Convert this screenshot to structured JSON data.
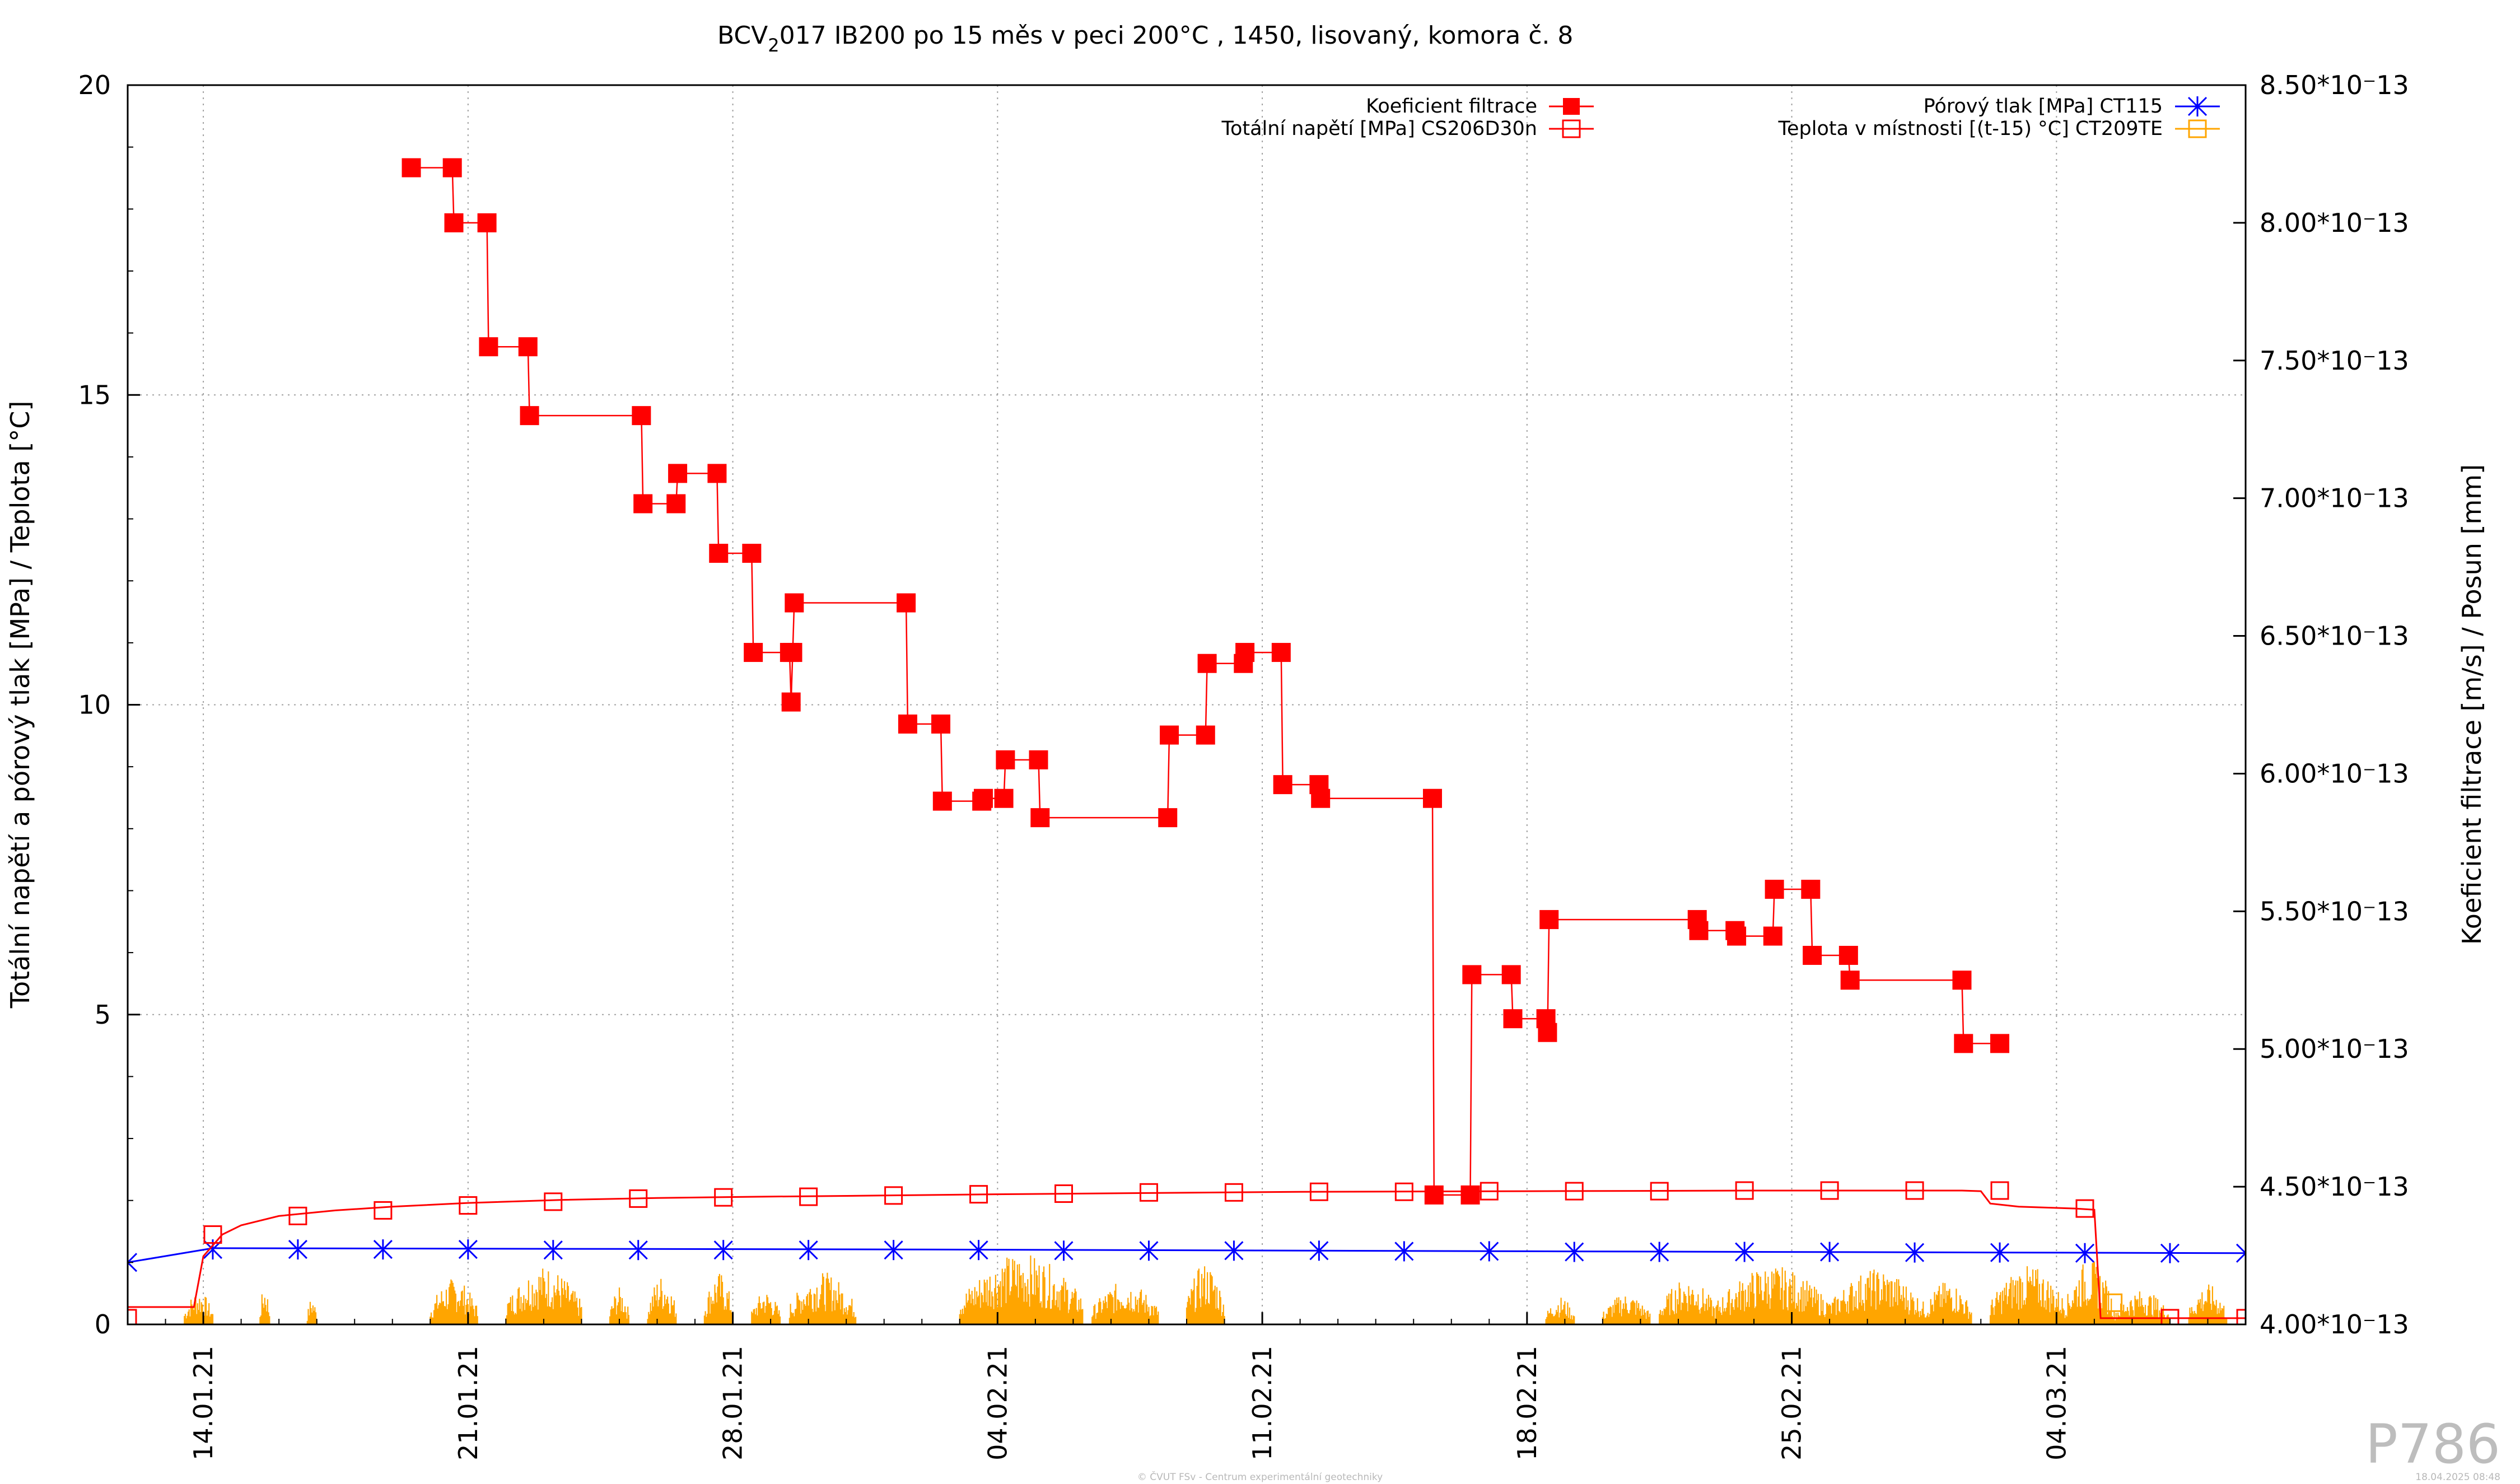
{
  "chart_data": {
    "type": "line",
    "title_main": "BCV",
    "title_sub": "2",
    "title_rest": "017 IB200 po 15 měs v peci 200°C , 1450, lisovaný, komora č. 8",
    "ylabel_left": "Totální napětí a pórový tlak [MPa] / Teplota [°C]",
    "ylabel_right": "Koeficient filtrace [m/s] / Posun [mm]",
    "xlim": [
      "2021-01-12",
      "2021-03-09"
    ],
    "ylim_left": [
      0,
      20
    ],
    "ylim_right": [
      4e-13,
      8.5e-13
    ],
    "left_ticks": [
      "0",
      "5",
      "10",
      "15",
      "20"
    ],
    "right_ticks": [
      "4.00*10⁻13",
      "4.50*10⁻13",
      "5.00*10⁻13",
      "5.50*10⁻13",
      "6.00*10⁻13",
      "6.50*10⁻13",
      "7.00*10⁻13",
      "7.50*10⁻13",
      "8.00*10⁻13",
      "8.50*10⁻13"
    ],
    "x_ticks": [
      "14.01.21",
      "21.01.21",
      "28.01.21",
      "04.02.21",
      "11.02.21",
      "18.02.21",
      "25.02.21",
      "04.03.21"
    ],
    "legend_left": [
      {
        "name": "Koeficient filtrace",
        "color": "#ff0000",
        "marker": "filled-square"
      },
      {
        "name": "Totální napětí [MPa] CS206D30n",
        "color": "#ff0000",
        "marker": "open-square"
      }
    ],
    "legend_right": [
      {
        "name": "Pórový tlak [MPa] CT115",
        "color": "#0000ff",
        "marker": "star"
      },
      {
        "name": "Teplota v místnosti [(t-15) °C] CT209TE",
        "color": "#ffa500",
        "marker": "open-square"
      }
    ],
    "series": [
      {
        "name": "Koeficient filtrace",
        "axis": "right",
        "color": "#ff0000",
        "step": true,
        "points": [
          [
            "2021-01-19 12:00",
            8.2e-13
          ],
          [
            "2021-01-20 14:00",
            8.2e-13
          ],
          [
            "2021-01-20 15:00",
            8e-13
          ],
          [
            "2021-01-21 12:00",
            8e-13
          ],
          [
            "2021-01-21 13:00",
            7.55e-13
          ],
          [
            "2021-01-22 14:00",
            7.55e-13
          ],
          [
            "2021-01-22 15:00",
            7.3e-13
          ],
          [
            "2021-01-25 14:00",
            7.3e-13
          ],
          [
            "2021-01-25 15:00",
            6.98e-13
          ],
          [
            "2021-01-26 12:00",
            6.98e-13
          ],
          [
            "2021-01-26 13:00",
            7.09e-13
          ],
          [
            "2021-01-27 14:00",
            7.09e-13
          ],
          [
            "2021-01-27 15:00",
            6.8e-13
          ],
          [
            "2021-01-28 12:00",
            6.8e-13
          ],
          [
            "2021-01-28 13:00",
            6.44e-13
          ],
          [
            "2021-01-29 12:00",
            6.44e-13
          ],
          [
            "2021-01-29 13:00",
            6.26e-13
          ],
          [
            "2021-01-29 14:00",
            6.44e-13
          ],
          [
            "2021-01-29 15:00",
            6.62e-13
          ],
          [
            "2021-02-01 14:00",
            6.62e-13
          ],
          [
            "2021-02-01 15:00",
            6.18e-13
          ],
          [
            "2021-02-02 12:00",
            6.18e-13
          ],
          [
            "2021-02-02 13:00",
            5.9e-13
          ],
          [
            "2021-02-03 14:00",
            5.9e-13
          ],
          [
            "2021-02-03 15:00",
            5.91e-13
          ],
          [
            "2021-02-04 04:00",
            5.91e-13
          ],
          [
            "2021-02-04 05:00",
            6.05e-13
          ],
          [
            "2021-02-05 02:00",
            6.05e-13
          ],
          [
            "2021-02-05 03:00",
            5.84e-13
          ],
          [
            "2021-02-08 12:00",
            5.84e-13
          ],
          [
            "2021-02-08 13:00",
            6.14e-13
          ],
          [
            "2021-02-09 12:00",
            6.14e-13
          ],
          [
            "2021-02-09 13:00",
            6.4e-13
          ],
          [
            "2021-02-10 12:00",
            6.4e-13
          ],
          [
            "2021-02-10 13:00",
            6.44e-13
          ],
          [
            "2021-02-11 12:00",
            6.44e-13
          ],
          [
            "2021-02-11 13:00",
            5.96e-13
          ],
          [
            "2021-02-12 12:00",
            5.96e-13
          ],
          [
            "2021-02-12 13:00",
            5.91e-13
          ],
          [
            "2021-02-15 12:00",
            5.91e-13
          ],
          [
            "2021-02-15 13:00",
            4.47e-13
          ],
          [
            "2021-02-16 12:00",
            4.47e-13
          ],
          [
            "2021-02-16 13:00",
            5.27e-13
          ],
          [
            "2021-02-17 14:00",
            5.27e-13
          ],
          [
            "2021-02-17 15:00",
            5.11e-13
          ],
          [
            "2021-02-18 12:00",
            5.11e-13
          ],
          [
            "2021-02-18 13:00",
            5.06e-13
          ],
          [
            "2021-02-18 14:00",
            5.47e-13
          ],
          [
            "2021-02-22 12:00",
            5.47e-13
          ],
          [
            "2021-02-22 13:00",
            5.43e-13
          ],
          [
            "2021-02-23 12:00",
            5.43e-13
          ],
          [
            "2021-02-23 13:00",
            5.41e-13
          ],
          [
            "2021-02-24 12:00",
            5.41e-13
          ],
          [
            "2021-02-24 13:00",
            5.58e-13
          ],
          [
            "2021-02-25 12:00",
            5.58e-13
          ],
          [
            "2021-02-25 13:00",
            5.34e-13
          ],
          [
            "2021-02-26 12:00",
            5.34e-13
          ],
          [
            "2021-02-26 13:00",
            5.25e-13
          ],
          [
            "2021-03-01 12:00",
            5.25e-13
          ],
          [
            "2021-03-01 13:00",
            5.02e-13
          ],
          [
            "2021-03-02 12:00",
            5.02e-13
          ]
        ]
      },
      {
        "name": "Totální napětí [MPa] CS206D30n",
        "axis": "left",
        "color": "#ff0000",
        "points": [
          [
            "2021-01-12 00:00",
            0.28
          ],
          [
            "2021-01-13 18:00",
            0.28
          ],
          [
            "2021-01-14 00:00",
            1.1
          ],
          [
            "2021-01-14 12:00",
            1.45
          ],
          [
            "2021-01-15 00:00",
            1.6
          ],
          [
            "2021-01-16 00:00",
            1.75
          ],
          [
            "2021-01-17 12:00",
            1.84
          ],
          [
            "2021-01-19 00:00",
            1.9
          ],
          [
            "2021-01-21 00:00",
            1.96
          ],
          [
            "2021-01-23 12:00",
            2.01
          ],
          [
            "2021-01-26 00:00",
            2.04
          ],
          [
            "2021-01-28 12:00",
            2.06
          ],
          [
            "2021-02-01 00:00",
            2.08
          ],
          [
            "2021-02-04 00:00",
            2.1
          ],
          [
            "2021-02-08 00:00",
            2.12
          ],
          [
            "2021-02-12 00:00",
            2.14
          ],
          [
            "2021-02-18 00:00",
            2.15
          ],
          [
            "2021-02-24 00:00",
            2.16
          ],
          [
            "2021-03-01 12:00",
            2.16
          ],
          [
            "2021-03-02 00:00",
            2.15
          ],
          [
            "2021-03-02 06:00",
            1.95
          ],
          [
            "2021-03-03 00:00",
            1.9
          ],
          [
            "2021-03-04 12:00",
            1.87
          ],
          [
            "2021-03-05 00:00",
            1.85
          ],
          [
            "2021-03-05 04:00",
            0.1
          ],
          [
            "2021-03-09 00:00",
            0.1
          ]
        ],
        "marker_points": [
          [
            "2021-01-12 00:00",
            0.1
          ],
          [
            "2021-01-14 06:00",
            1.45
          ],
          [
            "2021-01-16 12:00",
            1.75
          ],
          [
            "2021-01-18 18:00",
            1.84
          ],
          [
            "2021-01-21 00:00",
            1.92
          ],
          [
            "2021-01-23 06:00",
            1.98
          ],
          [
            "2021-01-25 12:00",
            2.03
          ],
          [
            "2021-01-27 18:00",
            2.05
          ],
          [
            "2021-01-30 00:00",
            2.06
          ],
          [
            "2021-02-01 06:00",
            2.08
          ],
          [
            "2021-02-03 12:00",
            2.1
          ],
          [
            "2021-02-05 18:00",
            2.11
          ],
          [
            "2021-02-08 00:00",
            2.13
          ],
          [
            "2021-02-10 06:00",
            2.13
          ],
          [
            "2021-02-12 12:00",
            2.14
          ],
          [
            "2021-02-14 18:00",
            2.14
          ],
          [
            "2021-02-17 00:00",
            2.15
          ],
          [
            "2021-02-19 06:00",
            2.15
          ],
          [
            "2021-02-21 12:00",
            2.15
          ],
          [
            "2021-02-23 18:00",
            2.16
          ],
          [
            "2021-02-26 00:00",
            2.16
          ],
          [
            "2021-02-28 06:00",
            2.16
          ],
          [
            "2021-03-02 12:00",
            2.16
          ],
          [
            "2021-03-04 18:00",
            1.87
          ],
          [
            "2021-03-07 00:00",
            0.1
          ],
          [
            "2021-03-09 00:00",
            0.1
          ]
        ]
      },
      {
        "name": "Pórový tlak [MPa] CT115",
        "axis": "left",
        "color": "#0000ff",
        "points": [
          [
            "2021-01-12 00:00",
            1.0
          ],
          [
            "2021-01-14 06:00",
            1.23
          ],
          [
            "2021-02-01 00:00",
            1.21
          ],
          [
            "2021-02-18 00:00",
            1.18
          ],
          [
            "2021-03-09 00:00",
            1.15
          ]
        ],
        "marker_points": [
          [
            "2021-01-12 00:00",
            1.0
          ],
          [
            "2021-01-14 06:00",
            1.21
          ],
          [
            "2021-01-16 12:00",
            1.21
          ],
          [
            "2021-01-18 18:00",
            1.21
          ],
          [
            "2021-01-21 00:00",
            1.21
          ],
          [
            "2021-01-23 06:00",
            1.2
          ],
          [
            "2021-01-25 12:00",
            1.2
          ],
          [
            "2021-01-27 18:00",
            1.2
          ],
          [
            "2021-01-30 00:00",
            1.2
          ],
          [
            "2021-02-01 06:00",
            1.2
          ],
          [
            "2021-02-03 12:00",
            1.2
          ],
          [
            "2021-02-05 18:00",
            1.19
          ],
          [
            "2021-02-08 00:00",
            1.19
          ],
          [
            "2021-02-10 06:00",
            1.19
          ],
          [
            "2021-02-12 12:00",
            1.19
          ],
          [
            "2021-02-14 18:00",
            1.18
          ],
          [
            "2021-02-17 00:00",
            1.18
          ],
          [
            "2021-02-19 06:00",
            1.17
          ],
          [
            "2021-02-21 12:00",
            1.17
          ],
          [
            "2021-02-23 18:00",
            1.17
          ],
          [
            "2021-02-26 00:00",
            1.17
          ],
          [
            "2021-02-28 06:00",
            1.16
          ],
          [
            "2021-03-02 12:00",
            1.16
          ],
          [
            "2021-03-04 18:00",
            1.15
          ],
          [
            "2021-03-07 00:00",
            1.15
          ],
          [
            "2021-03-09 00:00",
            1.15
          ]
        ]
      },
      {
        "name": "Teplota v místnosti [(t-15) °C] CT209TE",
        "axis": "left",
        "color": "#ffa500",
        "bursts": [
          {
            "start": "2021-01-13 12:00",
            "end": "2021-01-14 06:00",
            "peak": 0.55
          },
          {
            "start": "2021-01-15 12:00",
            "end": "2021-01-15 18:00",
            "peak": 0.65
          },
          {
            "start": "2021-01-16 18:00",
            "end": "2021-01-17 00:00",
            "peak": 0.45
          },
          {
            "start": "2021-01-20 00:00",
            "end": "2021-01-21 06:00",
            "peak": 0.75
          },
          {
            "start": "2021-01-22 00:00",
            "end": "2021-01-24 00:00",
            "peak": 0.95
          },
          {
            "start": "2021-01-24 18:00",
            "end": "2021-01-25 06:00",
            "peak": 0.6
          },
          {
            "start": "2021-01-25 18:00",
            "end": "2021-01-26 12:00",
            "peak": 0.8
          },
          {
            "start": "2021-01-27 06:00",
            "end": "2021-01-28 00:00",
            "peak": 0.85
          },
          {
            "start": "2021-01-28 12:00",
            "end": "2021-01-29 06:00",
            "peak": 0.55
          },
          {
            "start": "2021-01-29 12:00",
            "end": "2021-01-31 06:00",
            "peak": 0.85
          },
          {
            "start": "2021-02-03 00:00",
            "end": "2021-02-06 06:00",
            "peak": 1.15
          },
          {
            "start": "2021-02-06 12:00",
            "end": "2021-02-08 06:00",
            "peak": 0.7
          },
          {
            "start": "2021-02-09 00:00",
            "end": "2021-02-10 00:00",
            "peak": 1.0
          },
          {
            "start": "2021-02-18 12:00",
            "end": "2021-02-19 06:00",
            "peak": 0.45
          },
          {
            "start": "2021-02-20 00:00",
            "end": "2021-02-21 06:00",
            "peak": 0.5
          },
          {
            "start": "2021-02-21 12:00",
            "end": "2021-02-23 00:00",
            "peak": 0.75
          },
          {
            "start": "2021-02-23 00:00",
            "end": "2021-02-26 00:00",
            "peak": 0.95
          },
          {
            "start": "2021-02-26 00:00",
            "end": "2021-02-28 12:00",
            "peak": 0.9
          },
          {
            "start": "2021-02-28 12:00",
            "end": "2021-03-01 18:00",
            "peak": 0.7
          },
          {
            "start": "2021-03-02 06:00",
            "end": "2021-03-04 06:00",
            "peak": 0.95
          },
          {
            "start": "2021-03-04 06:00",
            "end": "2021-03-05 12:00",
            "peak": 1.05
          },
          {
            "start": "2021-03-05 12:00",
            "end": "2021-03-07 00:00",
            "peak": 0.55
          },
          {
            "start": "2021-03-07 12:00",
            "end": "2021-03-08 12:00",
            "peak": 0.65
          }
        ]
      }
    ],
    "grid": true
  },
  "watermark": "P786",
  "footer_center": "© ČVUT FSv - Centrum experimentální geotechniky",
  "footer_right": "18.04.2025 08:48"
}
